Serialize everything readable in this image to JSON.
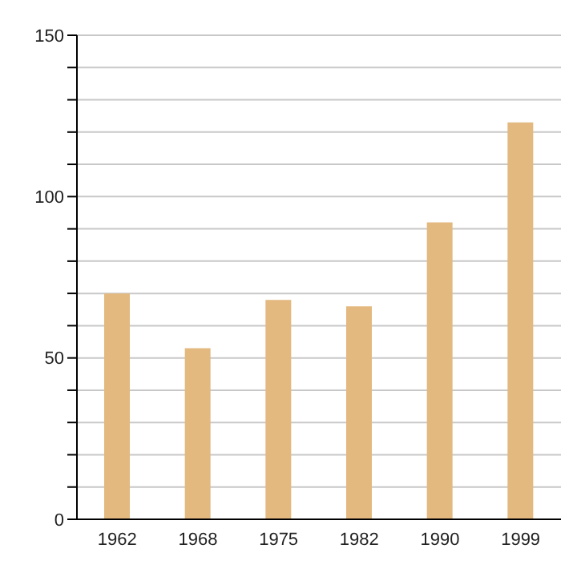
{
  "chart_data": {
    "type": "bar",
    "categories": [
      "1962",
      "1968",
      "1975",
      "1982",
      "1990",
      "1999"
    ],
    "values": [
      70,
      53,
      68,
      66,
      92,
      123
    ],
    "color": "#e3b97f",
    "ylim": [
      0,
      150
    ],
    "yticks": [
      0,
      {
        "value": 10,
        "label": null
      },
      {
        "value": 20,
        "label": null
      },
      {
        "value": 30,
        "label": null
      },
      {
        "value": 40,
        "label": null
      },
      50,
      {
        "value": 60,
        "label": null
      },
      {
        "value": 70,
        "label": null
      },
      {
        "value": 80,
        "label": null
      },
      {
        "value": 90,
        "label": null
      },
      100,
      {
        "value": 110,
        "label": null
      },
      {
        "value": 120,
        "label": null
      },
      {
        "value": 130,
        "label": null
      },
      {
        "value": 140,
        "label": null
      },
      150
    ],
    "grid": "y"
  }
}
